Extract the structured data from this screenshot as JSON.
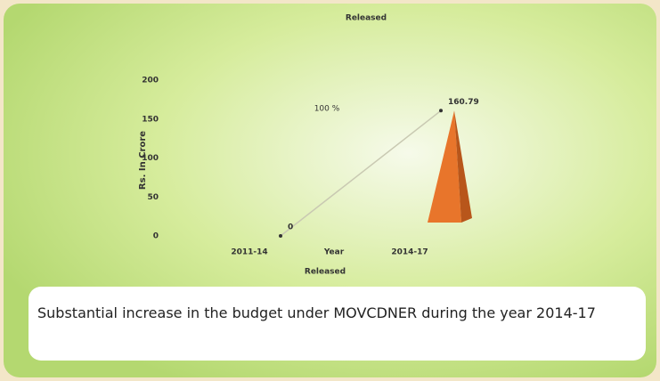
{
  "chart_data": {
    "type": "line",
    "title": "Released",
    "legend": "Released",
    "xlabel": "Year",
    "ylabel": "Rs. In Crore",
    "categories": [
      "2011-14",
      "2014-17"
    ],
    "values": [
      0,
      160.79
    ],
    "line_color": "#c9c9b2",
    "color": "#e8752b",
    "annotation": "100 %",
    "ylim": [
      0,
      200
    ],
    "yticks": [
      0,
      50,
      100,
      150,
      200
    ]
  },
  "caption": "Substantial increase in the budget under MOVCDNER during the year 2014-17"
}
